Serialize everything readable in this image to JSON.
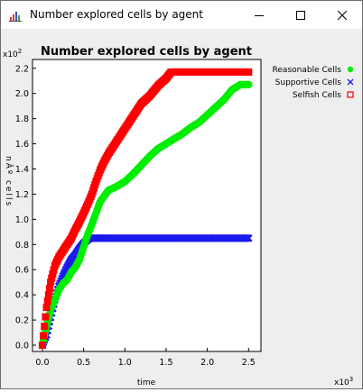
{
  "window": {
    "title": "Number explored cells by agent",
    "icon": "java-app-icon",
    "controls": [
      "minimize-icon",
      "maximize-icon",
      "close-icon"
    ]
  },
  "chart_data": {
    "type": "scatter",
    "title": "Number explored cells by agent",
    "xlabel": "time",
    "ylabel": "nº cells",
    "ylabel_rendered": "nÂº cells",
    "x_exponent": "x10",
    "x_exponent_power": "3",
    "y_exponent": "x10",
    "y_exponent_power": "2",
    "xlim": [
      -0.12,
      2.65
    ],
    "ylim": [
      -0.05,
      2.27
    ],
    "xticks": [
      "0.0",
      "0.5",
      "1.0",
      "1.5",
      "2.0",
      "2.5"
    ],
    "xtick_values": [
      0,
      0.5,
      1.0,
      1.5,
      2.0,
      2.5
    ],
    "yticks": [
      "0.0",
      "0.2",
      "0.4",
      "0.6",
      "0.8",
      "1.0",
      "1.2",
      "1.4",
      "1.6",
      "1.8",
      "2.0",
      "2.2"
    ],
    "ytick_values": [
      0,
      0.2,
      0.4,
      0.6,
      0.8,
      1.0,
      1.2,
      1.4,
      1.6,
      1.8,
      2.0,
      2.2
    ],
    "grid": false,
    "legend_position": "right",
    "series": [
      {
        "name": "Reasonable Cells",
        "color": "#00ee00",
        "marker": "circle",
        "x": [
          0.0,
          0.05,
          0.1,
          0.15,
          0.2,
          0.25,
          0.3,
          0.35,
          0.4,
          0.45,
          0.5,
          0.55,
          0.6,
          0.65,
          0.7,
          0.8,
          0.9,
          1.0,
          1.1,
          1.2,
          1.3,
          1.4,
          1.5,
          1.6,
          1.7,
          1.8,
          1.9,
          2.0,
          2.1,
          2.2,
          2.3,
          2.4,
          2.5
        ],
        "y": [
          0.0,
          0.15,
          0.28,
          0.36,
          0.44,
          0.49,
          0.52,
          0.58,
          0.62,
          0.68,
          0.78,
          0.88,
          0.96,
          1.05,
          1.14,
          1.23,
          1.26,
          1.3,
          1.36,
          1.43,
          1.5,
          1.56,
          1.6,
          1.64,
          1.68,
          1.73,
          1.77,
          1.83,
          1.89,
          1.95,
          2.03,
          2.07,
          2.07
        ]
      },
      {
        "name": "Supportive Cells",
        "color": "#1a1aee",
        "marker": "x",
        "x": [
          0.0,
          0.05,
          0.1,
          0.15,
          0.2,
          0.25,
          0.3,
          0.35,
          0.4,
          0.45,
          0.5,
          0.55,
          0.58,
          0.6,
          0.7,
          0.8,
          1.0,
          1.2,
          1.4,
          1.6,
          1.8,
          2.0,
          2.2,
          2.4,
          2.5
        ],
        "y": [
          0.0,
          0.08,
          0.22,
          0.36,
          0.47,
          0.55,
          0.62,
          0.68,
          0.72,
          0.77,
          0.81,
          0.84,
          0.85,
          0.85,
          0.85,
          0.85,
          0.85,
          0.85,
          0.85,
          0.85,
          0.85,
          0.85,
          0.85,
          0.85,
          0.85
        ]
      },
      {
        "name": "Selfish Cells",
        "color": "#ff0000",
        "marker": "square",
        "x": [
          0.0,
          0.05,
          0.1,
          0.15,
          0.2,
          0.25,
          0.3,
          0.35,
          0.4,
          0.45,
          0.5,
          0.55,
          0.6,
          0.65,
          0.7,
          0.75,
          0.8,
          0.9,
          1.0,
          1.1,
          1.2,
          1.3,
          1.4,
          1.5,
          1.56,
          1.6,
          1.8,
          2.0,
          2.2,
          2.4,
          2.5
        ],
        "y": [
          0.0,
          0.3,
          0.5,
          0.63,
          0.7,
          0.75,
          0.8,
          0.85,
          0.92,
          0.98,
          1.05,
          1.12,
          1.2,
          1.3,
          1.39,
          1.46,
          1.52,
          1.62,
          1.72,
          1.82,
          1.92,
          1.98,
          2.06,
          2.12,
          2.17,
          2.17,
          2.17,
          2.17,
          2.17,
          2.17,
          2.17
        ]
      }
    ]
  }
}
